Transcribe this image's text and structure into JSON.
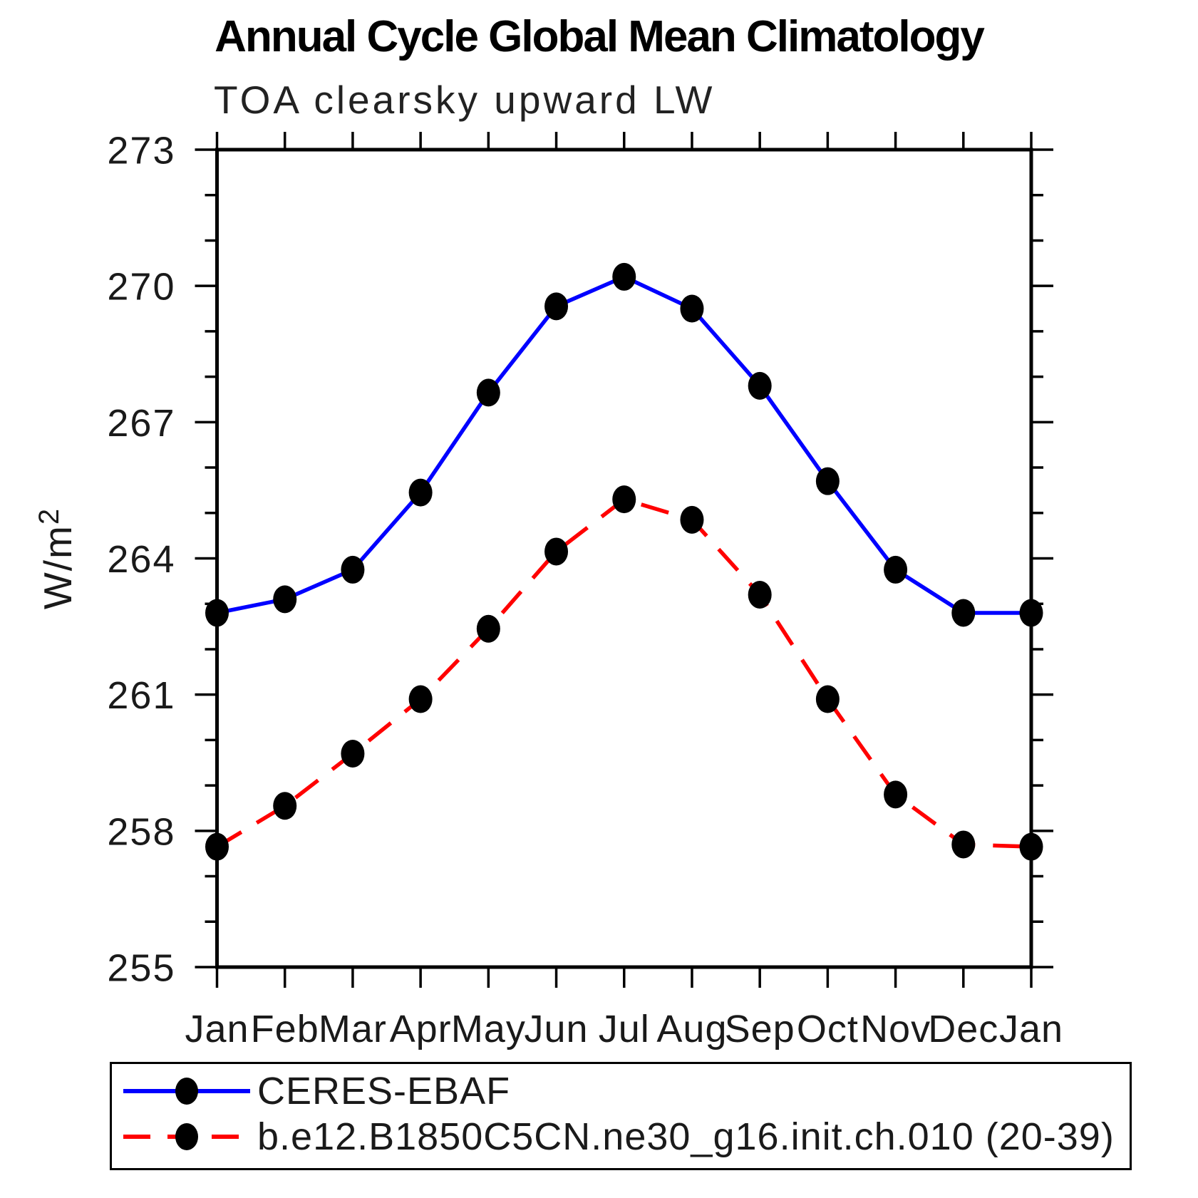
{
  "title": "Annual Cycle Global Mean Climatology",
  "subtitle": "TOA clearsky upward LW",
  "chart_data": {
    "type": "line",
    "x": [
      "Jan",
      "Feb",
      "Mar",
      "Apr",
      "May",
      "Jun",
      "Jul",
      "Aug",
      "Sep",
      "Oct",
      "Nov",
      "Dec",
      "Jan"
    ],
    "xlabel": "",
    "ylabel": "W/m²",
    "ylim": [
      255,
      273
    ],
    "yticks_major": [
      255,
      258,
      261,
      264,
      267,
      270,
      273
    ],
    "ytick_minor_step": 1,
    "grid": "off",
    "legend_position": "bottom-box",
    "series": [
      {
        "name": "CERES-EBAF",
        "line_style": "solid",
        "color": "#0000ff",
        "marker": "filled-circle",
        "marker_color": "#000000",
        "values": [
          262.8,
          263.1,
          263.75,
          265.45,
          267.65,
          269.55,
          270.2,
          269.5,
          267.8,
          265.7,
          263.75,
          262.8,
          262.8
        ]
      },
      {
        "name": "b.e12.B1850C5CN.ne30_g16.init.ch.010 (20-39)",
        "line_style": "dashed",
        "color": "#ff0000",
        "marker": "filled-circle",
        "marker_color": "#000000",
        "values": [
          257.65,
          258.55,
          259.7,
          260.9,
          262.45,
          264.15,
          265.3,
          264.85,
          263.2,
          260.9,
          258.8,
          257.7,
          257.65
        ]
      }
    ]
  },
  "colors": {
    "axis": "#000000",
    "tick_label": "#1a1a1a",
    "title": "#000000",
    "subtitle": "#222222",
    "background": "#ffffff"
  }
}
